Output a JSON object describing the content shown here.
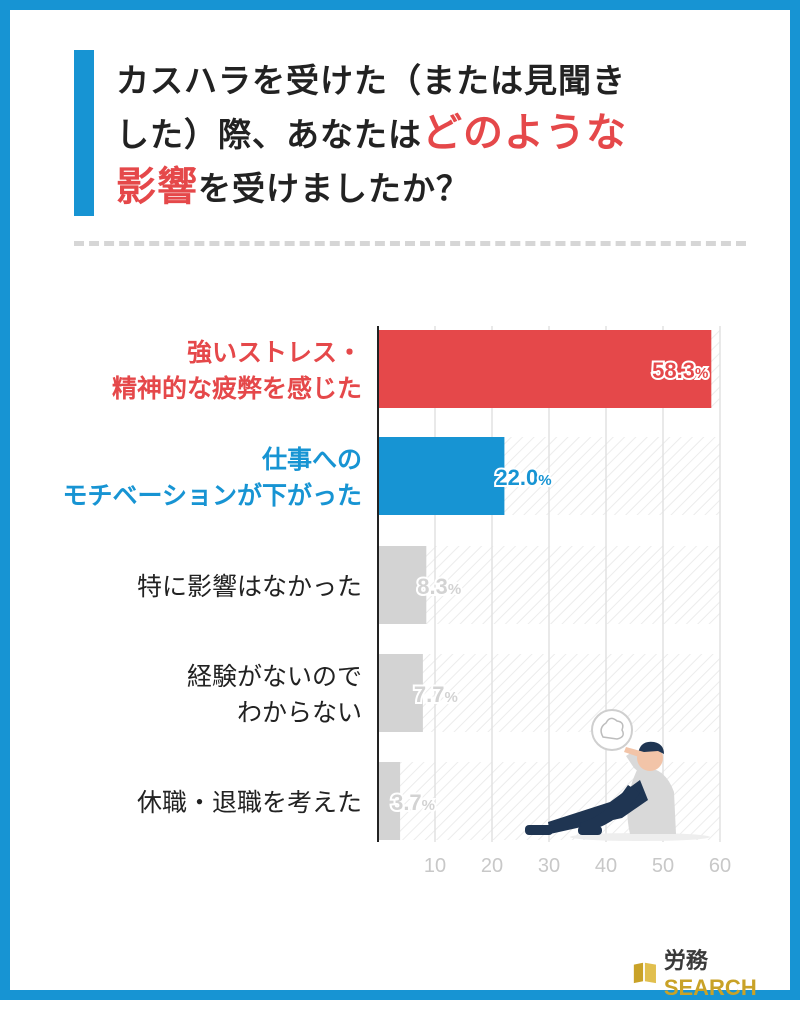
{
  "title": {
    "line1": "カスハラを受けた（または見聞き",
    "line2_pre": "した）際、あなたは",
    "line2_hl": "どのような",
    "line3_hl": "影響",
    "line3_post": "を受けましたか？"
  },
  "brand": {
    "name_jp": "労務",
    "name_en": "SEARCH"
  },
  "colors": {
    "highlight": "#e5484a",
    "secondary": "#1794d3",
    "neutral": "#d3d3d3",
    "frame": "#1794d3"
  },
  "chart_data": {
    "type": "bar",
    "orientation": "horizontal",
    "categories": [
      [
        "強いストレス・",
        "精神的な疲弊を感じた"
      ],
      [
        "仕事への",
        "モチベーションが下がった"
      ],
      [
        "特に影響はなかった"
      ],
      [
        "経験がないので",
        "わからない"
      ],
      [
        "休職・退職を考えた"
      ]
    ],
    "values": [
      58.3,
      22.0,
      8.3,
      7.7,
      3.7
    ],
    "value_labels": [
      {
        "num": "58.3",
        "unit": "%"
      },
      {
        "num": "22.0",
        "unit": "%"
      },
      {
        "num": "8.3",
        "unit": "%"
      },
      {
        "num": "7.7",
        "unit": "%"
      },
      {
        "num": "3.7",
        "unit": "%"
      }
    ],
    "bar_colors": [
      "#e5484a",
      "#1794d3",
      "#d3d3d3",
      "#d3d3d3",
      "#d3d3d3"
    ],
    "label_colors": [
      "#e5484a",
      "#1794d3",
      "#222222",
      "#222222",
      "#222222"
    ],
    "value_label_colors": [
      "#e5484a",
      "#1794d3",
      "#d3d3d3",
      "#d3d3d3",
      "#d3d3d3"
    ],
    "xticks": [
      10,
      20,
      30,
      40,
      50,
      60
    ],
    "xlim": [
      0,
      60
    ],
    "grid": true
  }
}
